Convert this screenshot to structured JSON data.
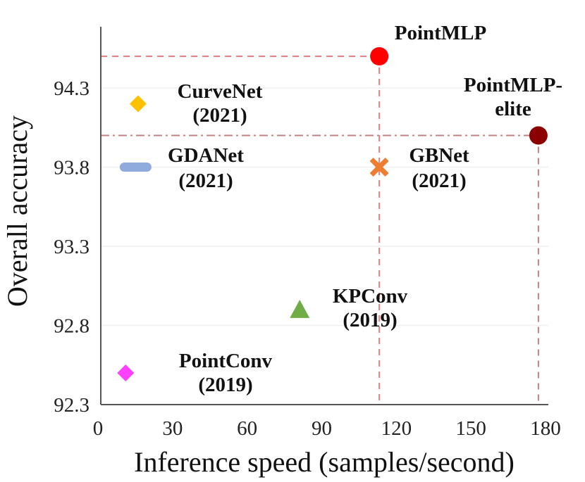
{
  "chart_data": {
    "type": "scatter",
    "title": "",
    "xlabel": "Inference speed (samples/second)",
    "ylabel": "Overall accuracy",
    "xlim": [
      0,
      180
    ],
    "ylim": [
      92.3,
      94.7
    ],
    "xticks": [
      "0",
      "30",
      "60",
      "90",
      "120",
      "150",
      "180"
    ],
    "yticks": [
      "92.3",
      "92.8",
      "93.3",
      "93.8",
      "94.3"
    ],
    "grid": "horizontal",
    "points": [
      {
        "name": "PointMLP",
        "label_lines": [
          "PointMLP"
        ],
        "x": 112,
        "y": 94.5,
        "marker": "circle",
        "color": "#ff0000"
      },
      {
        "name": "PointMLP-elite",
        "label_lines": [
          "PointMLP-",
          "elite"
        ],
        "x": 176,
        "y": 94.0,
        "marker": "circle",
        "color": "#8b0000"
      },
      {
        "name": "CurveNet",
        "label_lines": [
          "CurveNet",
          "(2021)"
        ],
        "x": 15,
        "y": 94.2,
        "marker": "diamond",
        "color": "#ffc000"
      },
      {
        "name": "GDANet",
        "label_lines": [
          "GDANet",
          "(2021)"
        ],
        "x": 14,
        "y": 93.8,
        "marker": "dash",
        "color": "#8faadc"
      },
      {
        "name": "GBNet",
        "label_lines": [
          "GBNet",
          "(2021)"
        ],
        "x": 112,
        "y": 93.8,
        "marker": "x",
        "color": "#ed7d31"
      },
      {
        "name": "KPConv",
        "label_lines": [
          "KPConv",
          "(2019)"
        ],
        "x": 80,
        "y": 92.9,
        "marker": "triangle",
        "color": "#70ad47"
      },
      {
        "name": "PointConv",
        "label_lines": [
          "PointConv",
          "(2019)"
        ],
        "x": 10,
        "y": 92.5,
        "marker": "diamond",
        "color": "#ff40ff"
      }
    ],
    "reference_lines": [
      {
        "point": "PointMLP",
        "style": "dashed",
        "color": "#f08080"
      },
      {
        "point": "PointMLP-elite",
        "style": "dash-dot",
        "color": "#c08080"
      }
    ]
  }
}
